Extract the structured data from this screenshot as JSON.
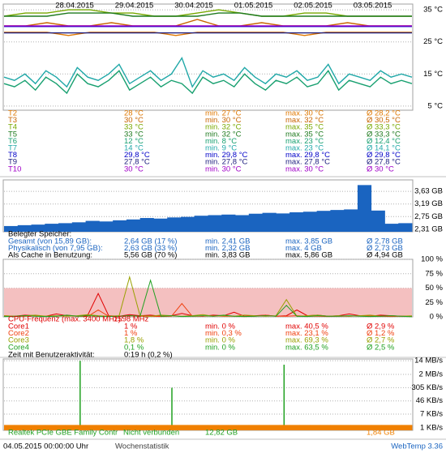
{
  "temperature": {
    "type": "line",
    "dates": [
      "28.04.2015",
      "29.04.2015",
      "30.04.2015",
      "01.05.2015",
      "02.05.2015",
      "03.05.2015"
    ],
    "ylim": [
      3.7,
      36.8
    ],
    "yticks": [
      {
        "value": 35,
        "label": "35 °C"
      },
      {
        "value": 25,
        "label": "25 °C"
      },
      {
        "value": 15,
        "label": "15 °C"
      },
      {
        "value": 5,
        "label": "5 °C"
      }
    ],
    "grid": true,
    "series": [
      {
        "name": "T2",
        "color": "#e07800",
        "values": [
          28,
          28,
          28,
          27,
          28,
          28,
          28,
          28,
          27,
          28,
          28,
          28,
          28,
          28,
          27,
          28,
          28,
          28,
          28,
          28
        ]
      },
      {
        "name": "T3",
        "color": "#c86400",
        "values": [
          30,
          30,
          31,
          30,
          30,
          31,
          30,
          30,
          30,
          32,
          30,
          30,
          31,
          30,
          30,
          30,
          31,
          30,
          30,
          30
        ]
      },
      {
        "name": "T4",
        "color": "#78a800",
        "values": [
          33,
          34,
          34,
          35,
          35,
          34,
          34,
          33,
          33,
          34,
          35,
          34,
          33,
          33,
          34,
          34,
          33,
          33,
          33,
          33
        ]
      },
      {
        "name": "T5",
        "color": "#1e7a1e",
        "values": [
          33,
          33,
          33,
          34,
          34,
          34,
          33,
          33,
          33,
          33,
          34,
          34,
          33,
          33,
          33,
          33,
          33,
          33,
          33,
          33
        ]
      },
      {
        "name": "T6",
        "color": "#18a070",
        "values": [
          12,
          11,
          13,
          10,
          14,
          12,
          9,
          15,
          12,
          11,
          13,
          16,
          10,
          12,
          14,
          11,
          13,
          12,
          9,
          14,
          12,
          13,
          11,
          15,
          12,
          10,
          13,
          12,
          14,
          11,
          12,
          16,
          10,
          13,
          12,
          11,
          14,
          12,
          13,
          12
        ]
      },
      {
        "name": "T7",
        "color": "#20a8a8",
        "values": [
          14,
          13,
          15,
          12,
          16,
          14,
          11,
          17,
          14,
          13,
          15,
          18,
          12,
          14,
          16,
          13,
          15,
          20,
          11,
          16,
          14,
          15,
          13,
          17,
          14,
          12,
          15,
          14,
          16,
          13,
          14,
          18,
          12,
          15,
          14,
          13,
          16,
          14,
          15,
          14
        ]
      },
      {
        "name": "T8",
        "color": "#0000c8",
        "values": [
          29.8,
          29.8
        ]
      },
      {
        "name": "T9",
        "color": "#202080",
        "values": [
          27.8,
          27.8
        ]
      },
      {
        "name": "T10",
        "color": "#a000c8",
        "values": [
          30,
          30
        ]
      }
    ],
    "rows": [
      [
        "28 °C",
        "min. 27 °C",
        "max. 30 °C",
        "Ø 28,2 °C"
      ],
      [
        "30 °C",
        "min. 30 °C",
        "max. 32 °C",
        "Ø 30,5 °C"
      ],
      [
        "33 °C",
        "min. 32 °C",
        "max. 35 °C",
        "Ø 33,3 °C"
      ],
      [
        "33 °C",
        "min. 32 °C",
        "max. 35 °C",
        "Ø 33,3 °C"
      ],
      [
        "12 °C",
        "min. 8 °C",
        "max. 23 °C",
        "Ø 12,4 °C"
      ],
      [
        "14 °C",
        "min. 9 °C",
        "max. 23 °C",
        "Ø 14,1 °C"
      ],
      [
        "29,8 °C",
        "min. 29,8 °C",
        "max. 29,8 °C",
        "Ø 29,8 °C"
      ],
      [
        "27,8 °C",
        "min. 27,8 °C",
        "max. 27,8 °C",
        "Ø 27,8 °C"
      ],
      [
        "30 °C",
        "min. 30 °C",
        "max. 30 °C",
        "Ø 30 °C"
      ]
    ]
  },
  "memory": {
    "type": "area",
    "color": "#1a64c0",
    "ylim": [
      2.22,
      4.03
    ],
    "yticks": [
      {
        "value": 3.63,
        "label": "3,63 GB"
      },
      {
        "value": 3.19,
        "label": "3,19 GB"
      },
      {
        "value": 2.75,
        "label": "2,75 GB"
      },
      {
        "value": 2.31,
        "label": "2,31 GB"
      }
    ],
    "values": [
      2.42,
      2.45,
      2.47,
      2.5,
      2.52,
      2.55,
      2.6,
      2.58,
      2.62,
      2.65,
      2.7,
      2.68,
      2.72,
      2.74,
      2.78,
      2.8,
      2.82,
      2.8,
      2.85,
      2.88,
      2.86,
      2.9,
      2.92,
      2.95,
      2.98,
      3.0,
      3.85,
      2.96,
      2.5,
      2.52
    ],
    "heading": "Belegter Speicher:",
    "rows": [
      [
        "Gesamt (von 15,89 GB):",
        "2,64 GB (17 %)",
        "min. 2,41 GB",
        "max. 3,85 GB",
        "Ø 2,78 GB"
      ],
      [
        "Physikalisch (von 7,95 GB):",
        "2,63 GB (33 %)",
        "min. 2,32 GB",
        "max. 4 GB",
        "Ø 2,73 GB"
      ],
      [
        "Als Cache in Benutzung:",
        "5,56 GB (70 %)",
        "min. 3,83 GB",
        "max. 5,86 GB",
        "Ø 4,94 GB"
      ]
    ]
  },
  "cpu": {
    "type": "line",
    "ylim": [
      0,
      100
    ],
    "yticks": [
      {
        "value": 100,
        "label": "100 %"
      },
      {
        "value": 75,
        "label": "75 %"
      },
      {
        "value": 50,
        "label": "50 %"
      },
      {
        "value": 25,
        "label": "25 %"
      },
      {
        "value": 0,
        "label": "0 %"
      }
    ],
    "series": [
      {
        "name": "Core1",
        "color": "#e00000",
        "values": [
          2,
          1,
          3,
          2,
          1,
          5,
          2,
          1,
          3,
          40.5,
          2,
          1,
          4,
          2,
          3,
          1,
          2,
          6,
          2,
          1,
          3,
          2,
          8,
          1,
          2,
          3,
          1,
          2,
          12,
          2,
          3,
          1,
          2,
          5,
          2,
          1,
          3,
          2,
          1,
          1
        ]
      },
      {
        "name": "Core2",
        "color": "#f04010",
        "values": [
          1,
          0.5,
          1,
          2,
          1,
          1,
          3,
          1,
          0.5,
          12,
          1,
          1,
          2,
          1,
          1,
          0.5,
          1,
          23.1,
          1,
          1,
          2,
          1,
          1,
          0.5,
          1,
          3,
          1,
          1,
          2,
          1,
          1,
          0.5,
          1,
          1,
          2,
          1,
          1,
          0.5,
          1,
          1
        ]
      },
      {
        "name": "Core3",
        "color": "#98a000",
        "values": [
          2,
          1,
          2,
          3,
          1,
          2,
          1,
          2,
          4,
          2,
          1,
          2,
          69.3,
          2,
          1,
          3,
          2,
          1,
          2,
          4,
          1,
          2,
          1,
          3,
          2,
          1,
          2,
          30,
          1,
          2,
          3,
          1,
          2,
          1,
          2,
          3,
          1,
          2,
          1,
          1.8
        ]
      },
      {
        "name": "Core4",
        "color": "#20a020",
        "values": [
          0.5,
          1,
          2,
          1,
          0.5,
          1,
          3,
          1,
          2,
          1,
          0.5,
          1,
          2,
          1,
          63.5,
          1,
          2,
          0.5,
          1,
          2,
          1,
          3,
          1,
          0.5,
          1,
          2,
          1,
          20,
          1,
          0.5,
          2,
          1,
          1,
          2,
          1,
          0.5,
          1,
          2,
          1,
          0.1
        ]
      }
    ],
    "frequency": [
      "CPU-Frequenz (max. 3400 MHz):",
      "1598 MHz"
    ],
    "rows": [
      [
        "1 %",
        "min. 0 %",
        "max. 40,5 %",
        "Ø 2,9 %"
      ],
      [
        "1 %",
        "min. 0,3 %",
        "max. 23,1 %",
        "Ø 1,2 %"
      ],
      [
        "1,8 %",
        "min. 0 %",
        "max. 69,3 %",
        "Ø 2,7 %"
      ],
      [
        "0,1 %",
        "min. 0 %",
        "max. 63,5 %",
        "Ø 2,5 %"
      ]
    ],
    "activity": [
      "Zeit mit Benutzeraktivität:",
      "0:19 h (0,2 %)"
    ]
  },
  "network": {
    "type": "bar",
    "log": true,
    "ylim": [
      0.7,
      18000
    ],
    "yticks": [
      {
        "value": 14000,
        "label": "14 MB/s"
      },
      {
        "value": 2000,
        "label": "2 MB/s"
      },
      {
        "value": 305,
        "label": "305 KB/s"
      },
      {
        "value": 46,
        "label": "46 KB/s"
      },
      {
        "value": 7,
        "label": "7 KB/s"
      },
      {
        "value": 1,
        "label": "1 KB/s"
      }
    ],
    "series": [
      {
        "name": "Realtek PCIe GBE Family Contr",
        "color": "#20a020",
        "values": [
          1,
          1,
          1,
          1,
          1,
          1,
          1,
          14000,
          1,
          1,
          1,
          1,
          1,
          1,
          1,
          1,
          300,
          1,
          1,
          1,
          1,
          1,
          1,
          1,
          1,
          1,
          1,
          8000,
          1,
          1,
          1,
          1,
          1,
          1,
          1,
          1,
          1,
          1,
          1,
          1
        ]
      },
      {
        "name": "Nicht verbunden",
        "color": "#f08000",
        "values": [
          1.5,
          1.5,
          1.5,
          1.5,
          1.5,
          1.5,
          1.5,
          1.5,
          1.5,
          1.5,
          1.5,
          1.5,
          1.5,
          1.5,
          1.5,
          1.5,
          1.5,
          1.5,
          1.5,
          1.5,
          1.5,
          1.5,
          1.5,
          1.5,
          1.5,
          1.5,
          1.5,
          1.5,
          1.5,
          1.5,
          1.5,
          1.5,
          1.5,
          1.5,
          1.5,
          1.5,
          1.5,
          1.5,
          1.5,
          1.5
        ]
      }
    ],
    "totals": [
      "12,82 GB",
      "1,84 GB"
    ]
  },
  "footer": {
    "timestamp": "04.05.2015 00:00:00 Uhr",
    "view": "Wochenstatistik",
    "app": "WebTemp 3.36"
  }
}
